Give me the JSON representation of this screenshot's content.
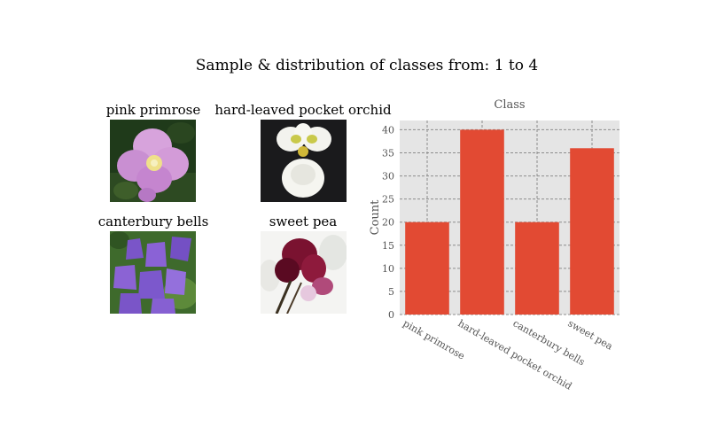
{
  "figure": {
    "suptitle": "Sample & distribution of classes: from: 1 to 4"
  },
  "samples": [
    {
      "label": "pink primrose",
      "icon": "pink-primrose-flower-image"
    },
    {
      "label": "hard-leaved pocket orchid",
      "icon": "white-orchid-flower-image"
    },
    {
      "label": "canterbury bells",
      "icon": "purple-bellflower-image"
    },
    {
      "label": "sweet pea",
      "icon": "magenta-sweet-pea-image"
    }
  ],
  "colors": {
    "bar": "#E24A33",
    "plot_background": "#E5E5E5",
    "grid": "#8C8C8C",
    "text": "#555555"
  },
  "chart_data": {
    "type": "bar",
    "title": "Class",
    "xlabel": "",
    "ylabel": "Count",
    "categories": [
      "pink primrose",
      "hard-leaved pocket orchid",
      "canterbury bells",
      "sweet pea"
    ],
    "values": [
      20,
      40,
      20,
      36
    ],
    "ylim": [
      0,
      42
    ],
    "yticks": [
      0,
      5,
      10,
      15,
      20,
      25,
      30,
      35,
      40
    ],
    "grid": true,
    "grid_style": "dashed",
    "legend": "none"
  }
}
